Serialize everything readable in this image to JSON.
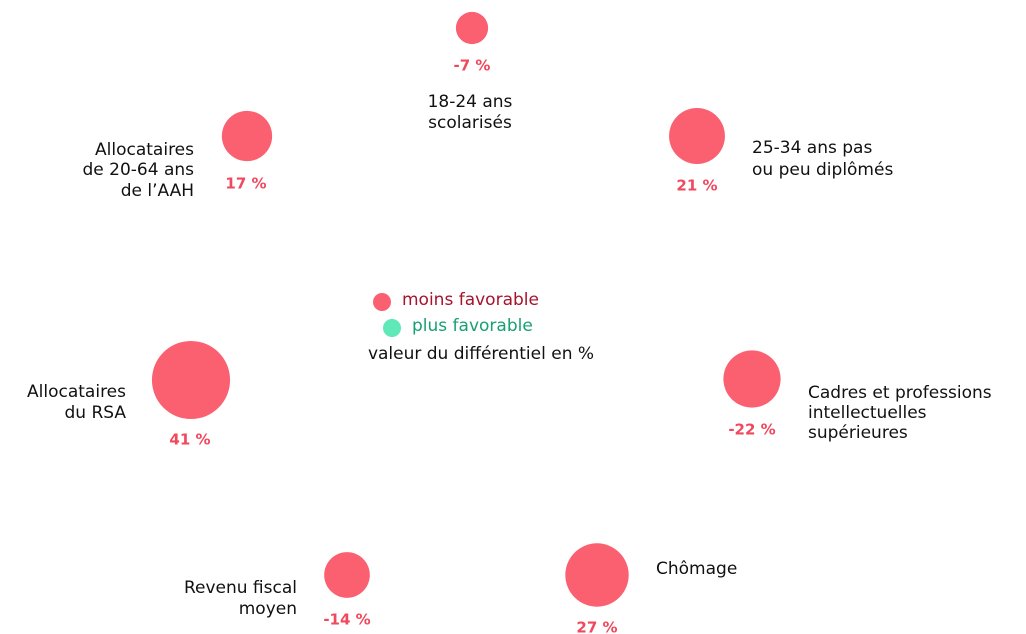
{
  "chart_data": {
    "type": "bubble",
    "categories": [
      [
        "18-24 ans",
        " scolarisés"
      ],
      [
        "25-34 ans pas",
        "ou peu diplômés"
      ],
      [
        "Cadres et professions",
        "intellectuelles",
        " supérieures"
      ],
      [
        "Chômage"
      ],
      [
        "Revenu fiscal",
        "moyen"
      ],
      [
        "Allocataires",
        "du RSA"
      ],
      [
        "Allocataires",
        "de 20-64 ans",
        "de l’AAH"
      ]
    ],
    "values": [
      -7,
      21,
      -22,
      27,
      -14,
      41,
      17
    ],
    "value_labels": [
      "-7 %",
      "21 %",
      "-22 %",
      "27 %",
      "-14 %",
      "41 %",
      "17 %"
    ],
    "color": "#fb6071",
    "legend": [
      {
        "name": "moins favorable",
        "color": "#fb6071",
        "text_color": "#a5132c"
      },
      {
        "name": "plus favorable",
        "color": "#5fe8b8",
        "text_color": "#17a070"
      }
    ],
    "legend_title": "valeur du différentiel en %"
  }
}
